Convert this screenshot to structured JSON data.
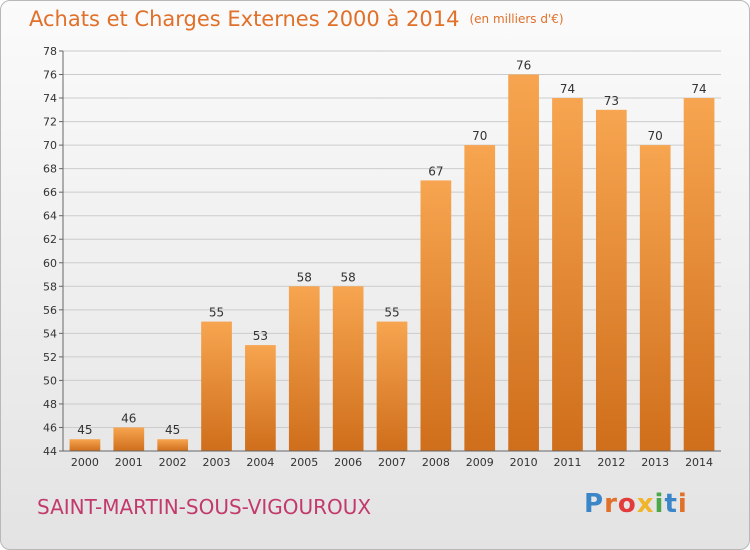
{
  "title": "Achats et Charges Externes 2000 à 2014",
  "subtitle": "(en milliers d'€)",
  "commune": "SAINT-MARTIN-SOUS-VIGOUROUX",
  "logo": {
    "text": "Proxiti",
    "colors": [
      "#3a86c8",
      "#e0702a",
      "#e33b3b",
      "#f0b52a",
      "#4aa84a",
      "#3a86c8",
      "#e0702a"
    ]
  },
  "colors": {
    "bar_top": "#f7a550",
    "bar_bottom": "#cf6e1b",
    "title": "#e0702a",
    "commune": "#c23a6b"
  },
  "chart_data": {
    "type": "bar",
    "categories": [
      "2000",
      "2001",
      "2002",
      "2003",
      "2004",
      "2005",
      "2006",
      "2007",
      "2008",
      "2009",
      "2010",
      "2011",
      "2012",
      "2013",
      "2014"
    ],
    "values": [
      45,
      46,
      45,
      55,
      53,
      58,
      58,
      55,
      67,
      70,
      76,
      74,
      73,
      70,
      74
    ],
    "ylim": [
      44,
      78
    ],
    "yticks": [
      44,
      46,
      48,
      50,
      52,
      54,
      56,
      58,
      60,
      62,
      64,
      66,
      68,
      70,
      72,
      74,
      76,
      78
    ],
    "grid": true,
    "title": "Achats et Charges Externes 2000 à 2014",
    "xlabel": "",
    "ylabel": ""
  }
}
